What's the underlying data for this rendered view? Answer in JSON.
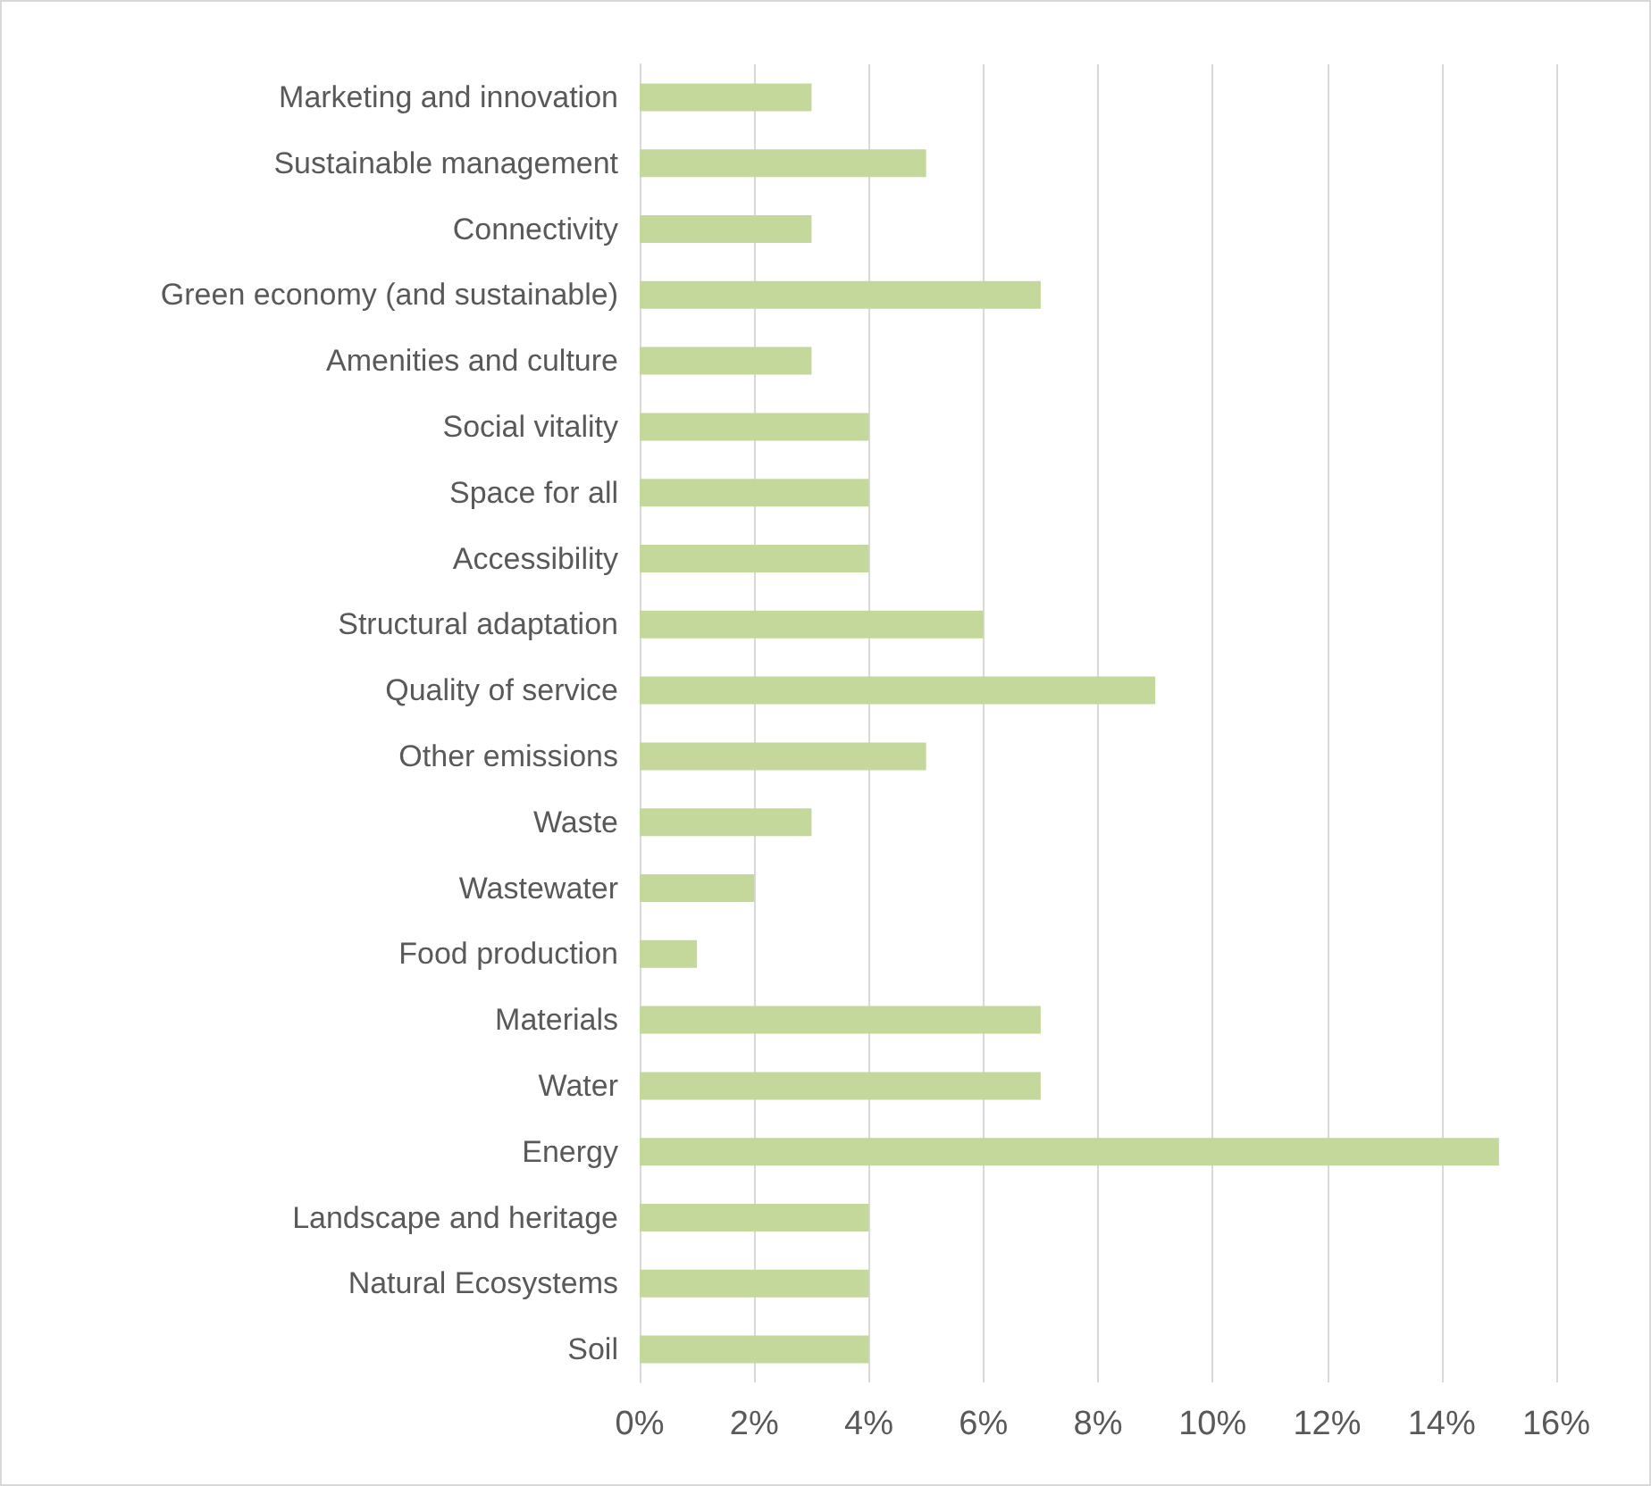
{
  "chart_data": {
    "type": "bar",
    "orientation": "horizontal",
    "categories": [
      "Marketing and innovation",
      "Sustainable management",
      "Connectivity",
      "Green economy (and sustainable)",
      "Amenities and culture",
      "Social vitality",
      "Space for all",
      "Accessibility",
      "Structural adaptation",
      "Quality of service",
      "Other emissions",
      "Waste",
      "Wastewater",
      "Food production",
      "Materials",
      "Water",
      "Energy",
      "Landscape and heritage",
      "Natural Ecosystems",
      "Soil"
    ],
    "values": [
      3,
      5,
      3,
      7,
      3,
      4,
      4,
      4,
      6,
      9,
      5,
      3,
      2,
      1,
      7,
      7,
      15,
      4,
      4,
      4
    ],
    "color": "#c4d89c",
    "xlim": [
      0,
      16
    ],
    "xticks": [
      {
        "value": 0,
        "label": "0%"
      },
      {
        "value": 2,
        "label": "2%"
      },
      {
        "value": 4,
        "label": "4%"
      },
      {
        "value": 6,
        "label": "6%"
      },
      {
        "value": 8,
        "label": "8%"
      },
      {
        "value": 10,
        "label": "10%"
      },
      {
        "value": 12,
        "label": "12%"
      },
      {
        "value": 14,
        "label": "14%"
      },
      {
        "value": 16,
        "label": "16%"
      }
    ],
    "grid": "x"
  }
}
